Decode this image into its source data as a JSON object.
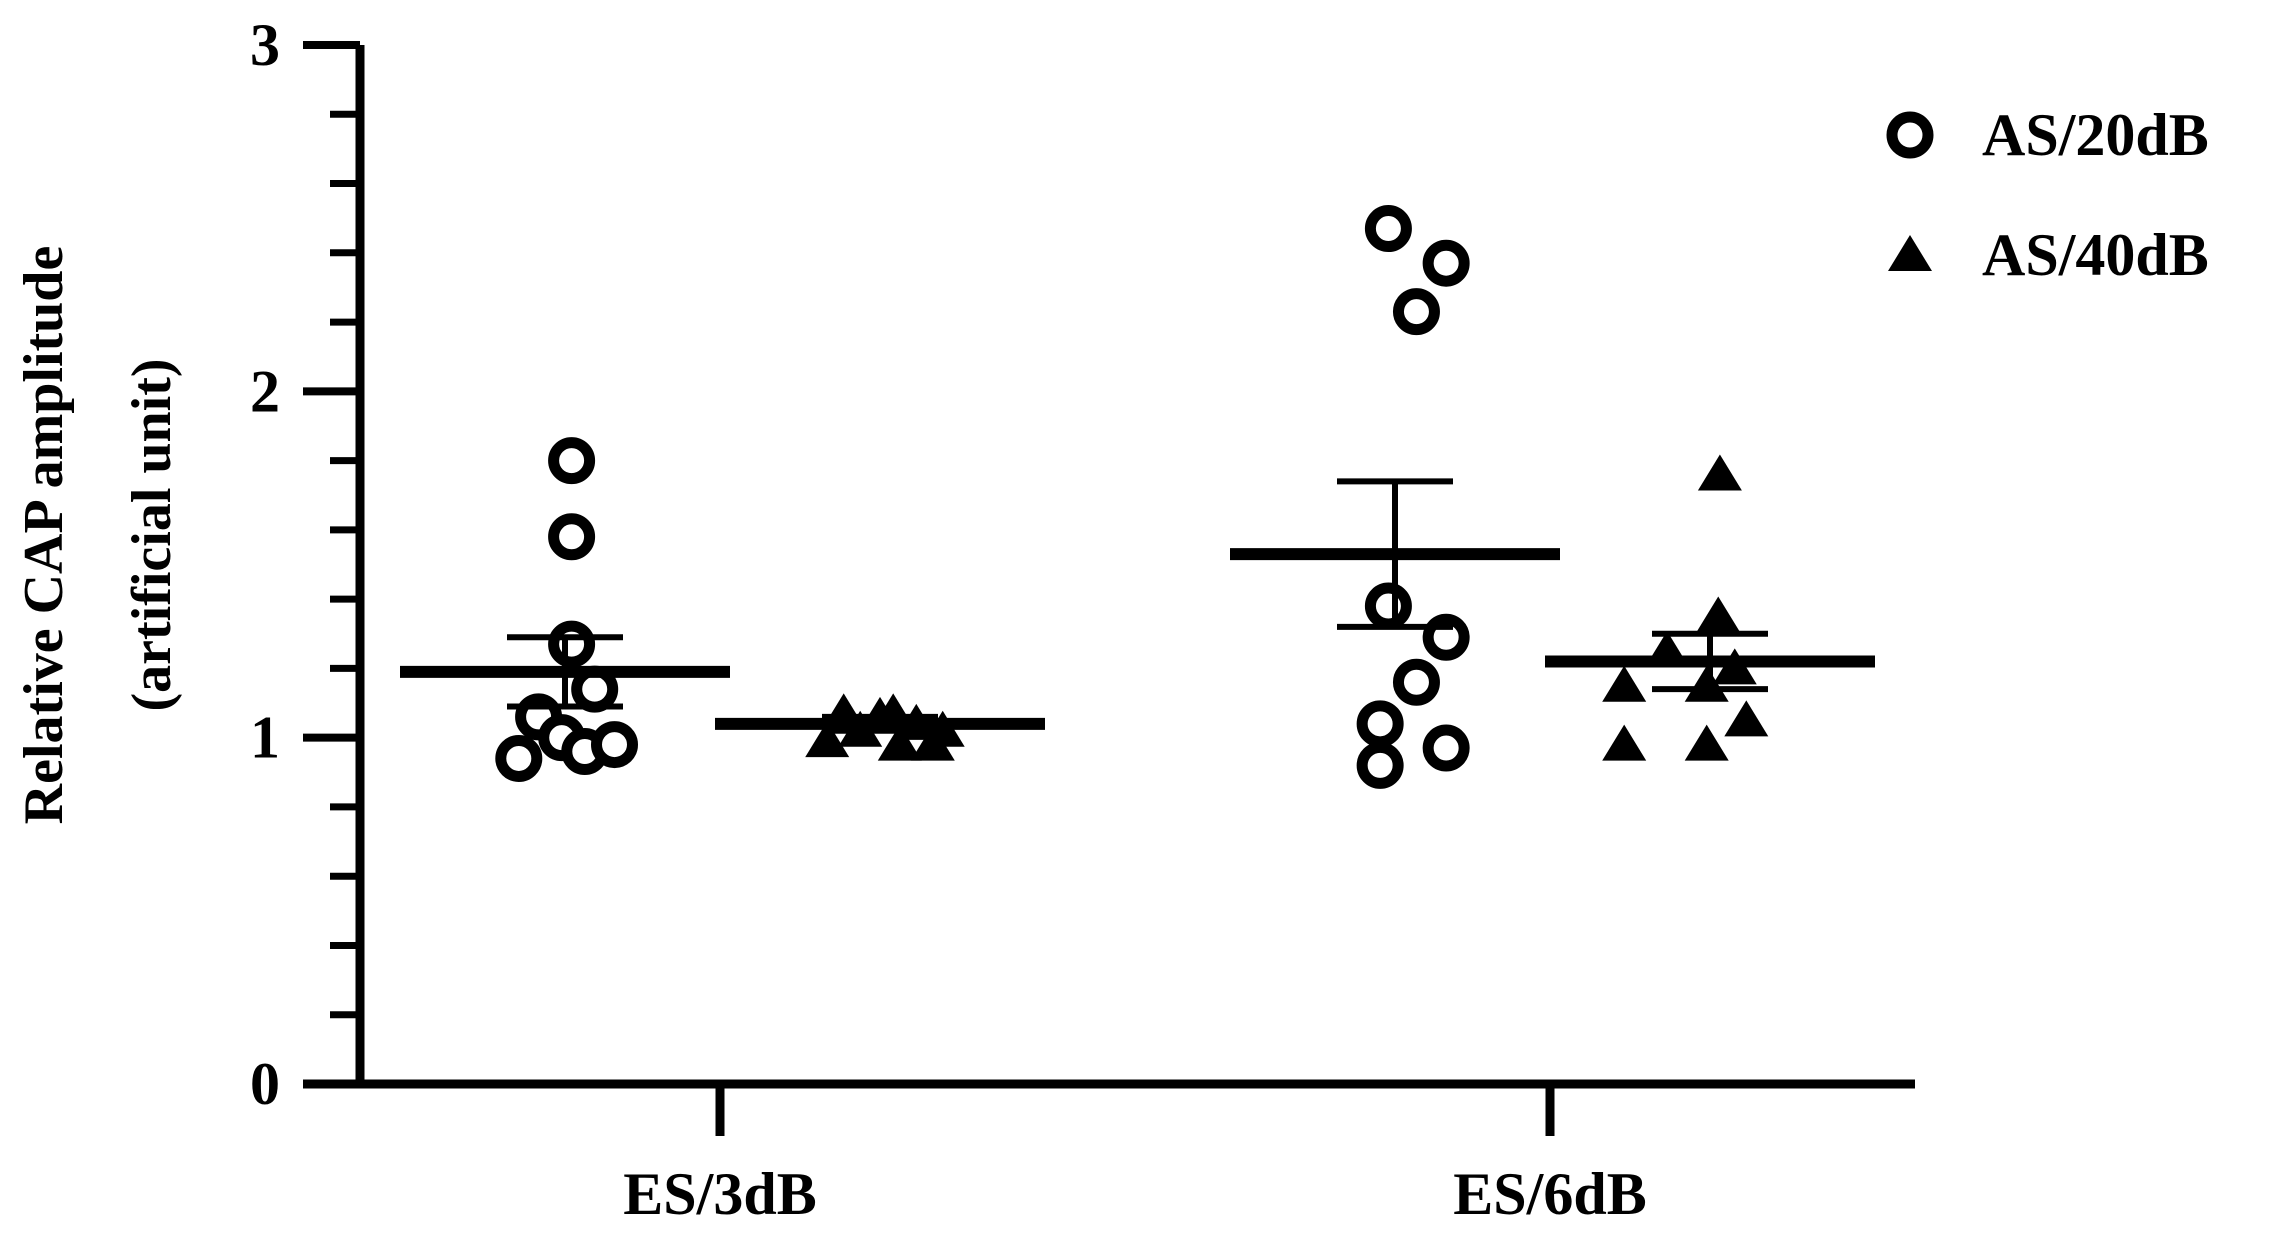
{
  "chart_data": {
    "type": "scatter",
    "ylabel_line1": "Relative CAP amplitude",
    "ylabel_line2": "(artificial unit)",
    "ylim": [
      0,
      3
    ],
    "yticks_major": [
      0,
      1,
      2,
      3
    ],
    "yticks_major_labels": [
      "0",
      "1",
      "2",
      "3"
    ],
    "yticks_minor": [
      0.2,
      0.4,
      0.6,
      0.8,
      1.2,
      1.4,
      1.6,
      1.8,
      2.2,
      2.4,
      2.6,
      2.8
    ],
    "categories": [
      "ES/3dB",
      "ES/6dB"
    ],
    "legend_position": "top-right",
    "colors": {
      "marker": "#000000",
      "axis": "#000000",
      "background": "#ffffff"
    },
    "series": [
      {
        "name": "AS/20dB",
        "marker": "open-circle",
        "groups": [
          {
            "category": "ES/3dB",
            "points": [
              [
                -0.28,
                0.94
              ],
              [
                -0.16,
                1.06
              ],
              [
                -0.02,
                1.0
              ],
              [
                0.12,
                0.96
              ],
              [
                0.3,
                0.98
              ],
              [
                0.18,
                1.14
              ],
              [
                0.04,
                1.27
              ],
              [
                0.04,
                1.58
              ],
              [
                0.04,
                1.8
              ]
            ],
            "mean": 1.19,
            "sem_low": 1.09,
            "sem_high": 1.29
          },
          {
            "category": "ES/6dB",
            "points": [
              [
                -0.09,
                0.92
              ],
              [
                -0.09,
                1.04
              ],
              [
                0.13,
                1.16
              ],
              [
                0.31,
                0.97
              ],
              [
                0.31,
                1.29
              ],
              [
                -0.04,
                1.38
              ],
              [
                0.13,
                2.23
              ],
              [
                0.31,
                2.37
              ],
              [
                -0.04,
                2.47
              ]
            ],
            "mean": 1.53,
            "sem_low": 1.32,
            "sem_high": 1.74
          }
        ]
      },
      {
        "name": "AS/40dB",
        "marker": "filled-triangle",
        "groups": [
          {
            "category": "ES/3dB",
            "points": [
              [
                -0.32,
                0.99
              ],
              [
                -0.22,
                1.07
              ],
              [
                -0.12,
                1.02
              ],
              [
                0.0,
                1.06
              ],
              [
                0.08,
                1.07
              ],
              [
                0.12,
                0.98
              ],
              [
                0.22,
                1.04
              ],
              [
                0.32,
                0.98
              ],
              [
                0.38,
                1.02
              ]
            ],
            "mean": 1.04,
            "sem_low": 1.02,
            "sem_high": 1.06
          },
          {
            "category": "ES/6dB",
            "points": [
              [
                -0.52,
                0.98
              ],
              [
                -0.52,
                1.15
              ],
              [
                -0.26,
                1.25
              ],
              [
                -0.02,
                0.98
              ],
              [
                -0.02,
                1.15
              ],
              [
                0.05,
                1.35
              ],
              [
                0.15,
                1.2
              ],
              [
                0.22,
                1.05
              ],
              [
                0.06,
                1.76
              ]
            ],
            "mean": 1.22,
            "sem_low": 1.14,
            "sem_high": 1.3
          }
        ]
      }
    ]
  }
}
